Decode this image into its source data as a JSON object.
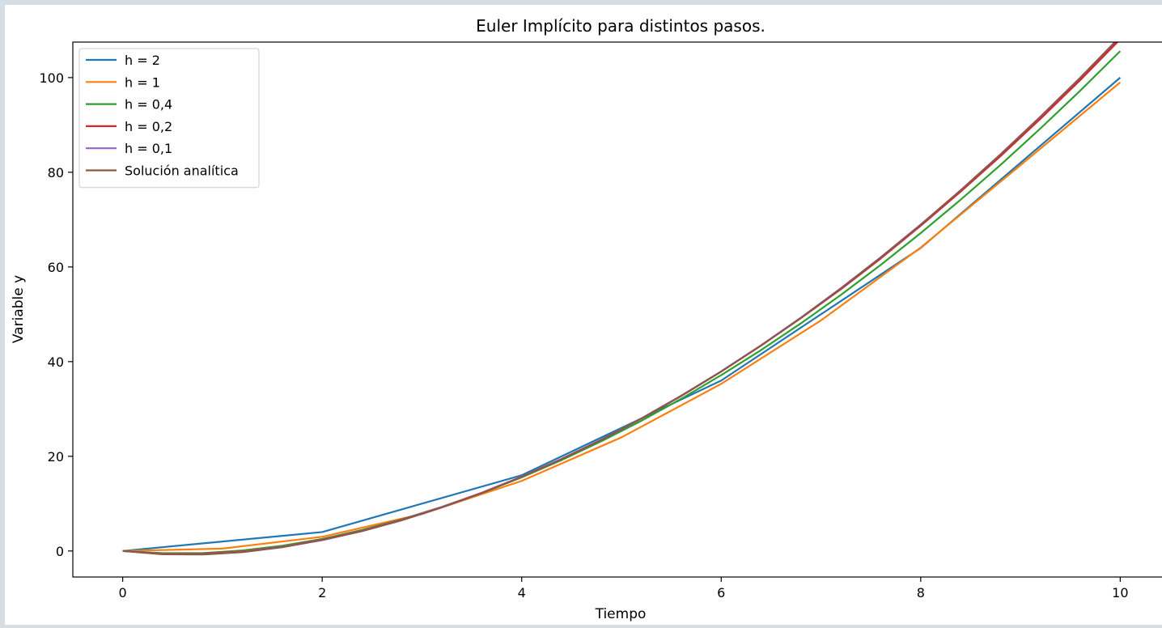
{
  "chart_data": {
    "type": "line",
    "title": "Euler Implícito para distintos pasos.",
    "xlabel": "Tiempo",
    "ylabel": "Variable y",
    "xlim": [
      -0.5,
      10.5
    ],
    "ylim": [
      -5.5,
      107.5
    ],
    "xticks": [
      0,
      2,
      4,
      6,
      8,
      10
    ],
    "xtick_labels": [
      "0",
      "2",
      "4",
      "6",
      "8",
      "10"
    ],
    "yticks": [
      0,
      20,
      40,
      60,
      80,
      100
    ],
    "ytick_labels": [
      "0",
      "20",
      "40",
      "60",
      "80",
      "100"
    ],
    "grid": false,
    "legend_position": "top-left",
    "series": [
      {
        "name": "h = 2",
        "color": "#1f77b4",
        "x": [
          0,
          2,
          4,
          6,
          8,
          10
        ],
        "y": [
          0,
          4,
          16,
          36,
          64,
          100
        ]
      },
      {
        "name": "h = 1",
        "color": "#ff7f0e",
        "x": [
          0,
          1,
          2,
          3,
          4,
          5,
          6,
          7,
          8,
          9,
          10
        ],
        "y": [
          0,
          0.5,
          3,
          7.8,
          14.8,
          24,
          35.3,
          48.7,
          64.1,
          81.5,
          99
        ]
      },
      {
        "name": "h = 0,4",
        "color": "#2ca02c",
        "x": [
          0,
          0.4,
          0.8,
          1.2,
          1.6,
          2,
          2.4,
          2.8,
          3.2,
          3.6,
          4,
          4.4,
          4.8,
          5.2,
          5.6,
          6,
          6.4,
          6.8,
          7.2,
          7.6,
          8,
          8.4,
          8.8,
          9.2,
          9.6,
          10
        ],
        "y": [
          0,
          -0.45,
          -0.45,
          0.1,
          1.1,
          2.55,
          4.45,
          6.7,
          9.3,
          12.25,
          15.55,
          19.2,
          23.2,
          27.5,
          32.15,
          37.15,
          42.45,
          48.1,
          54.1,
          60.45,
          67.15,
          74.2,
          81.55,
          89.25,
          97.25,
          105.6
        ]
      },
      {
        "name": "h = 0,2",
        "color": "#d62728",
        "x": [
          0,
          0.4,
          0.8,
          1.2,
          1.6,
          2,
          2.4,
          2.8,
          3.2,
          3.6,
          4,
          4.4,
          4.8,
          5.2,
          5.6,
          6,
          6.4,
          6.8,
          7.2,
          7.6,
          8,
          8.4,
          8.8,
          9.2,
          9.6,
          10,
          10.2
        ],
        "y": [
          0,
          -0.6,
          -0.6,
          -0.1,
          0.9,
          2.4,
          4.3,
          6.6,
          9.3,
          12.3,
          15.7,
          19.4,
          23.5,
          28.0,
          32.8,
          37.9,
          43.4,
          49.2,
          55.3,
          61.8,
          68.7,
          75.9,
          83.4,
          91.3,
          99.5,
          108.1,
          112.5
        ]
      },
      {
        "name": "h = 0,1",
        "color": "#9467bd",
        "x": [
          0,
          0.4,
          0.8,
          1.2,
          1.6,
          2,
          2.4,
          2.8,
          3.2,
          3.6,
          4,
          4.4,
          4.8,
          5.2,
          5.6,
          6,
          6.4,
          6.8,
          7.2,
          7.6,
          8,
          8.4,
          8.8,
          9.2,
          9.6,
          10
        ],
        "y": [
          0,
          -0.65,
          -0.7,
          -0.2,
          0.85,
          2.35,
          4.25,
          6.55,
          9.25,
          12.3,
          15.7,
          19.45,
          23.55,
          28.0,
          32.8,
          37.95,
          43.45,
          49.3,
          55.5,
          62.05,
          68.95,
          76.2,
          83.8,
          91.75,
          100.0,
          108.65
        ]
      },
      {
        "name": "Solución analítica",
        "color": "#8c564b",
        "x": [
          0,
          0.4,
          0.8,
          1.2,
          1.6,
          2,
          2.4,
          2.8,
          3.2,
          3.6,
          4,
          4.4,
          4.8,
          5.2,
          5.6,
          6,
          6.4,
          6.8,
          7.2,
          7.6,
          8,
          8.4,
          8.8,
          9.2,
          9.6,
          10
        ],
        "y": [
          0,
          -0.7,
          -0.75,
          -0.25,
          0.8,
          2.3,
          4.2,
          6.5,
          9.2,
          12.25,
          15.65,
          19.4,
          23.5,
          27.95,
          32.75,
          37.9,
          43.4,
          49.25,
          55.45,
          62.0,
          68.9,
          76.15,
          83.75,
          91.7,
          99.95,
          108.6
        ]
      }
    ]
  }
}
